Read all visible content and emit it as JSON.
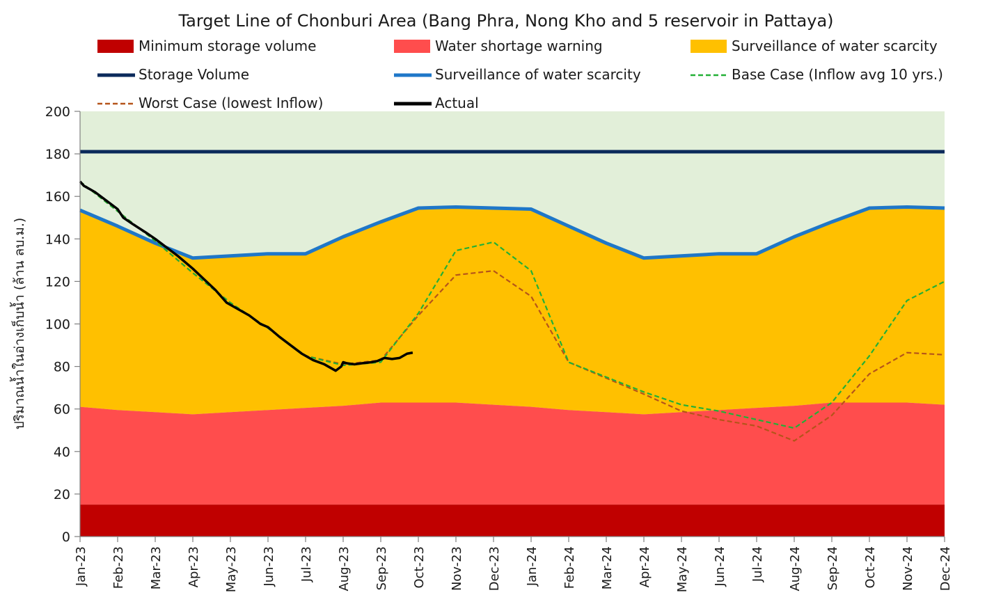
{
  "chart_data": {
    "type": "area",
    "title": "Target Line of Chonburi Area (Bang Phra, Nong Kho and 5 reservoir in Pattaya)",
    "ylabel": "ปริมาณน้ำในอ่างเก็บน้ำ (ล้าน ลบ.ม.)",
    "xlabel": "",
    "ylim": [
      0,
      200
    ],
    "yticks": [
      0,
      20,
      40,
      60,
      80,
      100,
      120,
      140,
      160,
      180,
      200
    ],
    "categories": [
      "Jan-23",
      "Feb-23",
      "Mar-23",
      "Apr-23",
      "May-23",
      "Jun-23",
      "Jul-23",
      "Aug-23",
      "Sep-23",
      "Oct-23",
      "Nov-23",
      "Dec-23",
      "Jan-24",
      "Feb-24",
      "Mar-24",
      "Apr-24",
      "May-24",
      "Jun-24",
      "Jul-24",
      "Aug-24",
      "Sep-24",
      "Oct-24",
      "Nov-24",
      "Dec-24"
    ],
    "colors": {
      "min_storage": "#c00000",
      "shortage": "#ff4d4d",
      "surveillance_fill": "#ffc000",
      "above_fill": "#e2efd9",
      "storage_line": "#0b2a5b",
      "surveillance_line": "#1f77c8",
      "base_case": "#22b036",
      "worst_case": "#b5541a",
      "actual": "#000000"
    },
    "legend": [
      {
        "key": "min_storage",
        "label": "Minimum storage volume",
        "style": "box"
      },
      {
        "key": "shortage",
        "label": "Water shortage warning",
        "style": "box"
      },
      {
        "key": "surveillance_fill",
        "label": "Surveillance of water scarcity",
        "style": "box"
      },
      {
        "key": "storage_line",
        "label": "Storage Volume",
        "style": "line"
      },
      {
        "key": "surveillance_line",
        "label": "Surveillance of water scarcity",
        "style": "line"
      },
      {
        "key": "base_case",
        "label": "Base Case (Inflow avg 10 yrs.)",
        "style": "dash"
      },
      {
        "key": "worst_case",
        "label": "Worst Case (lowest Inflow)",
        "style": "dash"
      },
      {
        "key": "actual",
        "label": "Actual",
        "style": "line"
      }
    ],
    "series": [
      {
        "name": "Minimum storage volume",
        "key": "min_storage",
        "values": [
          15,
          15,
          15,
          15,
          15,
          15,
          15,
          15,
          15,
          15,
          15,
          15,
          15,
          15,
          15,
          15,
          15,
          15,
          15,
          15,
          15,
          15,
          15,
          15
        ]
      },
      {
        "name": "Water shortage warning",
        "key": "shortage",
        "values": [
          61,
          59.5,
          58.5,
          57.5,
          58.5,
          59.5,
          60.5,
          61.5,
          63,
          63,
          63,
          62,
          61,
          59.5,
          58.5,
          57.5,
          58.5,
          59.5,
          60.5,
          61.5,
          63,
          63,
          63,
          62
        ]
      },
      {
        "name": "Surveillance of water scarcity",
        "key": "surveillance_line",
        "values": [
          153.5,
          146,
          138,
          131,
          132,
          133,
          133,
          141,
          148,
          154.5,
          155,
          154.5,
          154,
          146,
          138,
          131,
          132,
          133,
          133,
          141,
          148,
          154.5,
          155,
          154.5
        ]
      },
      {
        "name": "Storage Volume",
        "key": "storage_line",
        "values": [
          181,
          181,
          181,
          181,
          181,
          181,
          181,
          181,
          181,
          181,
          181,
          181,
          181,
          181,
          181,
          181,
          181,
          181,
          181,
          181,
          181,
          181,
          181,
          181
        ]
      },
      {
        "name": "Base Case (Inflow avg 10 yrs.)",
        "key": "base_case",
        "x": [
          0,
          1,
          2,
          3,
          4,
          5,
          6,
          7,
          8,
          9,
          10,
          11,
          12,
          13,
          14,
          15,
          16,
          17,
          18,
          19,
          20,
          21,
          22,
          23
        ],
        "values": [
          167,
          153,
          139,
          124,
          110,
          98,
          85,
          80.5,
          82,
          105,
          134.5,
          138.5,
          125,
          82,
          75,
          68,
          62,
          59,
          55,
          51,
          63,
          85,
          111,
          120
        ]
      },
      {
        "name": "Worst Case (lowest Inflow)",
        "key": "worst_case",
        "x": [
          0,
          1,
          2,
          3,
          4,
          5,
          6,
          7,
          8,
          9,
          10,
          11,
          12,
          13,
          14,
          15,
          16,
          17,
          18,
          19,
          20,
          21,
          22,
          23
        ],
        "values": [
          167,
          153,
          139,
          124,
          110,
          98,
          85,
          81,
          83,
          104,
          123,
          125,
          113,
          82,
          74.5,
          67,
          59,
          55,
          52,
          45,
          57,
          76.5,
          86.5,
          85.5
        ]
      },
      {
        "name": "Actual",
        "key": "actual",
        "x": [
          0,
          0.1,
          0.4,
          0.7,
          1,
          1.15,
          1.4,
          1.75,
          2,
          2.3,
          2.6,
          3,
          3.3,
          3.6,
          3.9,
          4,
          4.2,
          4.5,
          4.8,
          5,
          5.3,
          5.6,
          5.9,
          6.2,
          6.5,
          6.8,
          6.95,
          7,
          7.1,
          7.3,
          7.5,
          7.75,
          7.9,
          8.1,
          8.3,
          8.5,
          8.7,
          8.85
        ],
        "values": [
          167,
          165,
          162,
          158,
          154,
          150,
          147,
          143,
          140,
          136,
          132,
          126,
          121,
          116,
          110,
          109,
          107,
          104,
          100,
          98.5,
          94,
          90,
          86,
          83,
          81,
          78,
          80,
          82,
          81.5,
          81,
          81.5,
          82,
          82.5,
          84,
          83.5,
          84,
          86,
          86.5
        ]
      }
    ]
  }
}
